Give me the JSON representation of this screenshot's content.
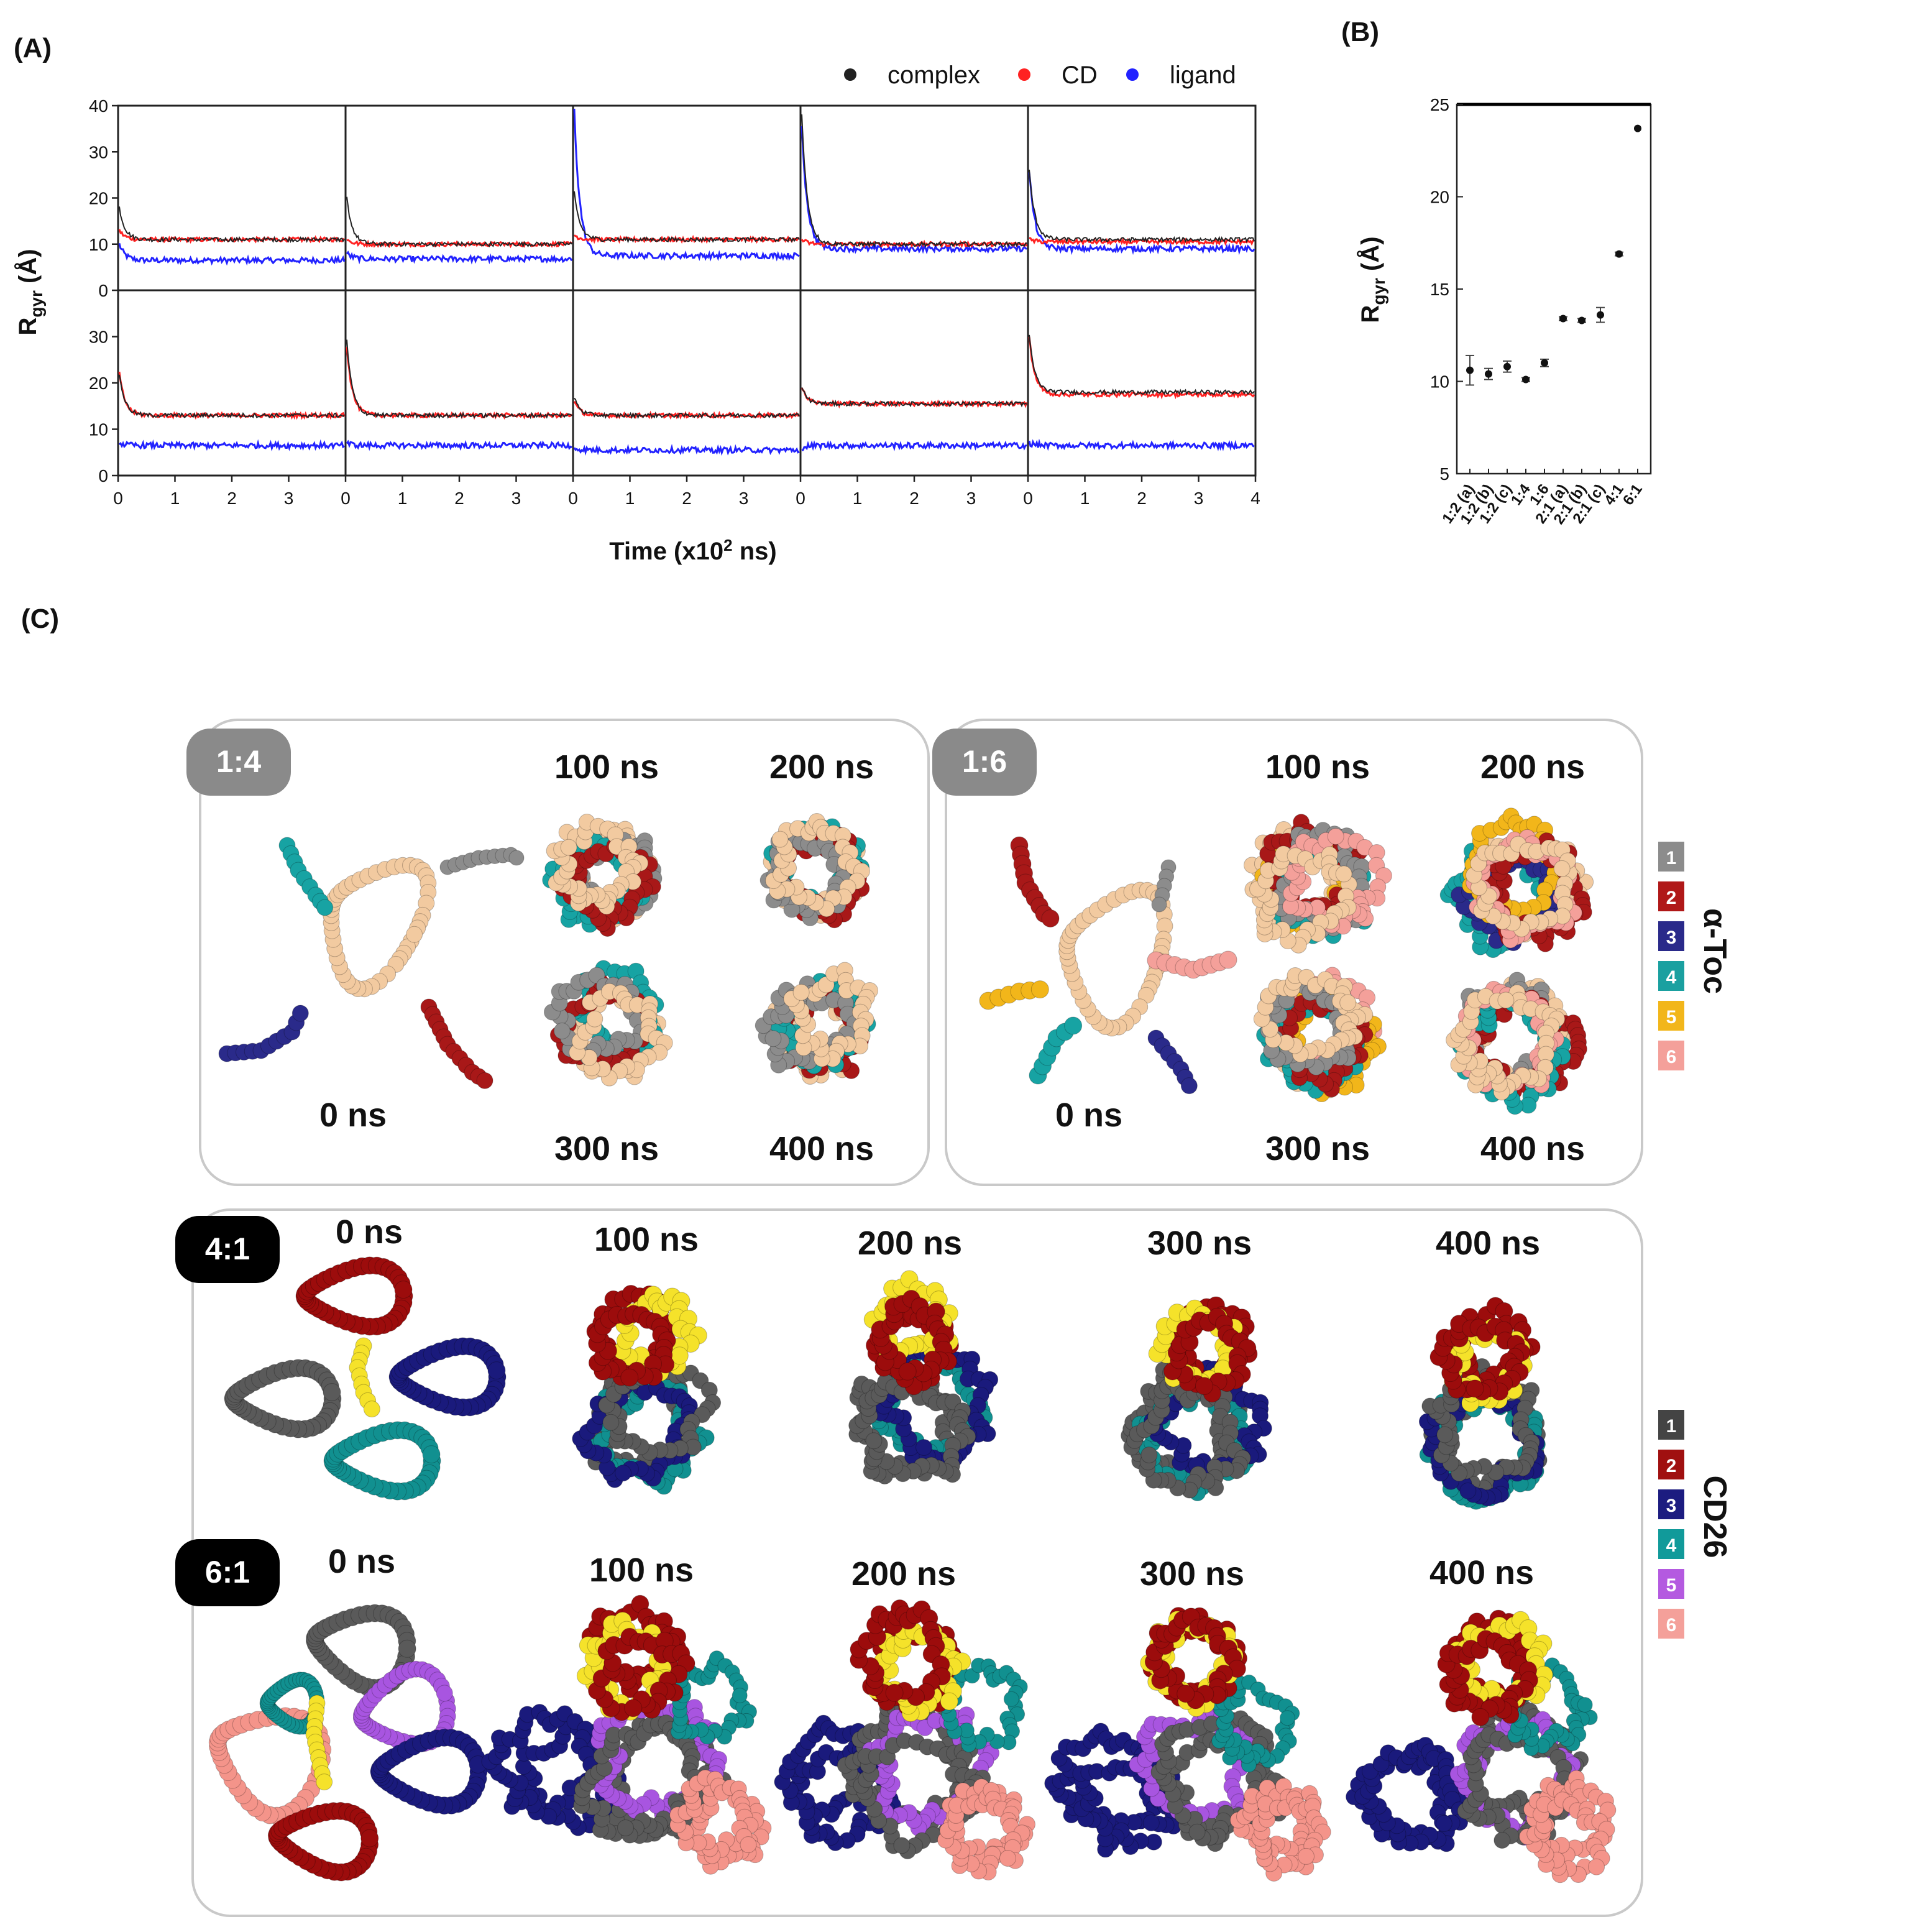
{
  "panel_labels": {
    "a": "(A)",
    "b": "(B)",
    "c": "(C)"
  },
  "chart_data": [
    {
      "id": "A",
      "type": "line",
      "title": "",
      "xlabel_prefix": "Time (x10",
      "xlabel_sup": "2",
      "xlabel_suffix": " ns)",
      "ylabel_main": "R",
      "ylabel_sub": "gyr",
      "ylabel_unit": " (Å)",
      "xlim": [
        0,
        4
      ],
      "ylim": [
        0,
        40
      ],
      "x_ticks": [
        "0",
        "1",
        "2",
        "3"
      ],
      "x_ticks_last": [
        "0",
        "1",
        "2",
        "3",
        "4"
      ],
      "y_ticks": [
        "0",
        "10",
        "20",
        "30",
        "40"
      ],
      "y_ticks_bottom": [
        "0",
        "10",
        "20",
        "30"
      ],
      "legend": [
        {
          "name": "complex",
          "color": "#222222"
        },
        {
          "name": "CD",
          "color": "#ff2222"
        },
        {
          "name": "ligand",
          "color": "#2222ff"
        }
      ],
      "legend_position": "top-right",
      "grid": false,
      "panels": [
        {
          "row": 0,
          "col": 0,
          "series": {
            "complex": {
              "start": 18,
              "mean": 11
            },
            "CD": {
              "start": 13,
              "mean": 11
            },
            "ligand": {
              "start": 10,
              "mean": 6.5
            }
          }
        },
        {
          "row": 0,
          "col": 1,
          "series": {
            "complex": {
              "start": 20,
              "mean": 10
            },
            "CD": {
              "start": 11,
              "mean": 10
            },
            "ligand": {
              "start": 8,
              "mean": 6.8
            }
          }
        },
        {
          "row": 0,
          "col": 2,
          "series": {
            "complex": {
              "start": 21,
              "mean": 11
            },
            "CD": {
              "start": 12,
              "mean": 11
            },
            "ligand": {
              "start": 39,
              "mean": 7.5
            }
          }
        },
        {
          "row": 0,
          "col": 3,
          "series": {
            "complex": {
              "start": 38,
              "mean": 10
            },
            "CD": {
              "start": 11,
              "mean": 10
            },
            "ligand": {
              "start": 36,
              "mean": 9
            }
          }
        },
        {
          "row": 0,
          "col": 4,
          "series": {
            "complex": {
              "start": 26,
              "mean": 11
            },
            "CD": {
              "start": 11,
              "mean": 10.5
            },
            "ligand": {
              "start": 26,
              "mean": 9
            }
          }
        },
        {
          "row": 1,
          "col": 0,
          "series": {
            "complex": {
              "start": 22,
              "mean": 13
            },
            "CD": {
              "start": 22,
              "mean": 13
            },
            "ligand": {
              "start": 7,
              "mean": 6.5
            }
          }
        },
        {
          "row": 1,
          "col": 1,
          "series": {
            "complex": {
              "start": 29,
              "mean": 13
            },
            "CD": {
              "start": 28,
              "mean": 13
            },
            "ligand": {
              "start": 7,
              "mean": 6.5
            }
          }
        },
        {
          "row": 1,
          "col": 2,
          "series": {
            "complex": {
              "start": 17,
              "mean": 13
            },
            "CD": {
              "start": 16,
              "mean": 13
            },
            "ligand": {
              "start": 6,
              "mean": 5.5
            }
          }
        },
        {
          "row": 1,
          "col": 3,
          "series": {
            "complex": {
              "start": 19,
              "mean": 15.5
            },
            "CD": {
              "start": 19,
              "mean": 15.5
            },
            "ligand": {
              "start": 6,
              "mean": 6.5
            }
          }
        },
        {
          "row": 1,
          "col": 4,
          "series": {
            "complex": {
              "start": 30,
              "mean": 18
            },
            "CD": {
              "start": 30,
              "mean": 17.5
            },
            "ligand": {
              "start": 7,
              "mean": 6.5
            }
          }
        }
      ]
    },
    {
      "id": "B",
      "type": "scatter",
      "title": "",
      "xlabel": "",
      "ylabel_main": "R",
      "ylabel_sub": "gyr",
      "ylabel_unit": " (Å)",
      "ylim": [
        5,
        25
      ],
      "y_ticks": [
        "5",
        "10",
        "15",
        "20",
        "25"
      ],
      "categories": [
        "1:2 (a)",
        "1:2 (b)",
        "1:2 (c)",
        "1:4",
        "1:6",
        "2:1 (a)",
        "2:1 (b)",
        "2:1 (c)",
        "4:1",
        "6:1"
      ],
      "values": [
        10.6,
        10.4,
        10.8,
        10.1,
        11.0,
        13.4,
        13.3,
        13.6,
        16.9,
        23.7
      ],
      "errors": [
        0.8,
        0.3,
        0.3,
        0.1,
        0.2,
        0.1,
        0.1,
        0.4,
        0.1,
        0.05
      ]
    }
  ],
  "panel_c": {
    "boxes": [
      {
        "badge": "1:4",
        "t0": "0 ns",
        "t100": "100 ns",
        "t200": "200 ns",
        "t300": "300 ns",
        "t400": "400 ns"
      },
      {
        "badge": "1:6",
        "t0": "0 ns",
        "t100": "100 ns",
        "t200": "200 ns",
        "t300": "300 ns",
        "t400": "400 ns"
      }
    ],
    "rows": [
      {
        "badge": "4:1",
        "t0": "0 ns",
        "t100": "100 ns",
        "t200": "200 ns",
        "t300": "300 ns",
        "t400": "400 ns"
      },
      {
        "badge": "6:1",
        "t0": "0 ns",
        "t100": "100 ns",
        "t200": "200 ns",
        "t300": "300 ns",
        "t400": "400 ns"
      }
    ],
    "legend_toc": {
      "title": "α-Toc",
      "items": [
        {
          "num": "1",
          "color": "#8c8c8c"
        },
        {
          "num": "2",
          "color": "#b01818"
        },
        {
          "num": "3",
          "color": "#2a2a8a"
        },
        {
          "num": "4",
          "color": "#1aa0a0"
        },
        {
          "num": "5",
          "color": "#f2b61a"
        },
        {
          "num": "6",
          "color": "#f4a09a"
        }
      ]
    },
    "legend_cd": {
      "title": "CD26",
      "items": [
        {
          "num": "1",
          "color": "#444444"
        },
        {
          "num": "2",
          "color": "#a01010"
        },
        {
          "num": "3",
          "color": "#1c1c80"
        },
        {
          "num": "4",
          "color": "#119a9a"
        },
        {
          "num": "5",
          "color": "#b45ae0"
        },
        {
          "num": "6",
          "color": "#f4a09a"
        }
      ]
    },
    "colors": {
      "cd_beige": "#f2caa0",
      "toc_gray": "#8c8c8c",
      "toc_red": "#a81818",
      "toc_navy": "#2a2a8a",
      "toc_teal": "#17a3a3",
      "toc_yellow": "#f2b61a",
      "toc_pink": "#f4a09a",
      "cd_gray": "#5a5a5a",
      "cd_red": "#9c0c0c",
      "cd_navy": "#1a1a7c",
      "cd_teal": "#119090",
      "cd_purple": "#a855e0",
      "cd_pink": "#f4948a",
      "ligand_yellow": "#f5e22a"
    }
  }
}
